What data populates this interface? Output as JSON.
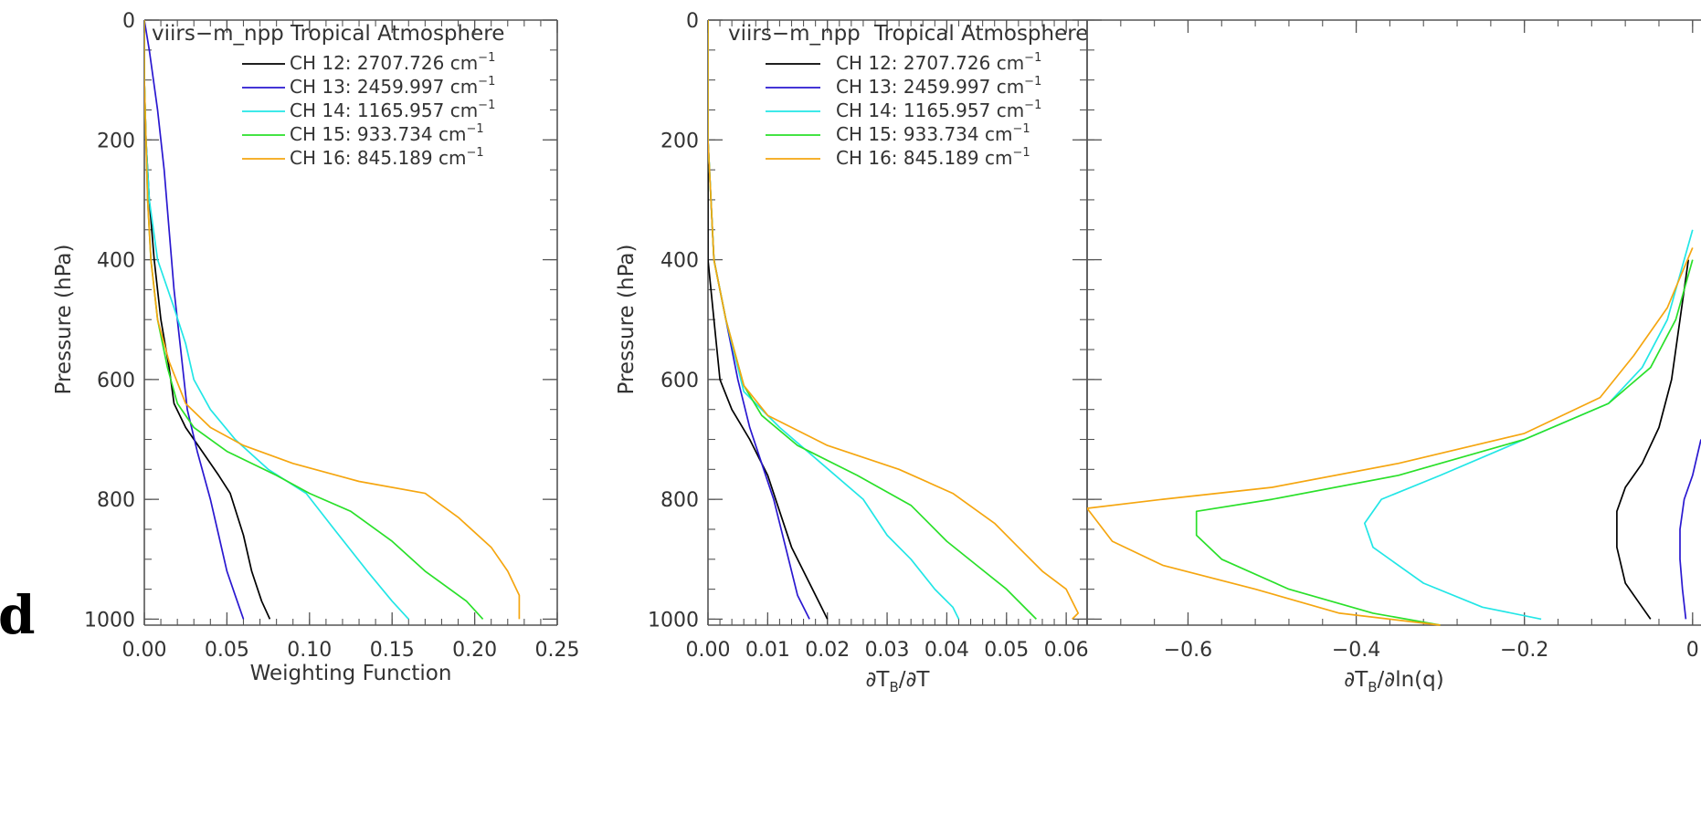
{
  "panel_label": "d",
  "chart_data": [
    {
      "type": "line",
      "title": "Tropical Atmosphere",
      "subtitle": "viirs−m_npp",
      "xlabel": "Weighting Function",
      "ylabel": "Pressure (hPa)",
      "xlim": [
        0,
        0.25
      ],
      "ylim": [
        1010,
        0
      ],
      "x_ticks": [
        0,
        0.05,
        0.1,
        0.15,
        0.2,
        0.25
      ],
      "x_tick_labels": [
        "0.00",
        "0.05",
        "0.10",
        "0.15",
        "0.20",
        "0.25"
      ],
      "y_ticks": [
        0,
        200,
        400,
        600,
        800,
        1000
      ],
      "y_tick_labels": [
        "0",
        "200",
        "400",
        "600",
        "800",
        "1000"
      ],
      "legend_position": "top",
      "series": [
        {
          "name": "CH 12: 2707.726 cm",
          "color": "#000000",
          "points": [
            [
              0.0,
              0
            ],
            [
              0.0,
              100
            ],
            [
              0.001,
              200
            ],
            [
              0.003,
              300
            ],
            [
              0.006,
              400
            ],
            [
              0.01,
              500
            ],
            [
              0.015,
              580
            ],
            [
              0.018,
              640
            ],
            [
              0.025,
              680
            ],
            [
              0.035,
              720
            ],
            [
              0.045,
              760
            ],
            [
              0.052,
              790
            ],
            [
              0.06,
              860
            ],
            [
              0.065,
              920
            ],
            [
              0.071,
              970
            ],
            [
              0.076,
              1000
            ]
          ]
        },
        {
          "name": "CH 13: 2459.997 cm",
          "color": "#2a18d0",
          "points": [
            [
              0.0,
              0
            ],
            [
              0.003,
              50
            ],
            [
              0.008,
              150
            ],
            [
              0.012,
              250
            ],
            [
              0.015,
              350
            ],
            [
              0.018,
              450
            ],
            [
              0.022,
              550
            ],
            [
              0.026,
              650
            ],
            [
              0.032,
              720
            ],
            [
              0.04,
              800
            ],
            [
              0.045,
              860
            ],
            [
              0.05,
              920
            ],
            [
              0.055,
              960
            ],
            [
              0.06,
              1000
            ]
          ]
        },
        {
          "name": "CH 14: 1165.957 cm",
          "color": "#22e6e6",
          "points": [
            [
              0.0,
              0
            ],
            [
              0.0,
              100
            ],
            [
              0.001,
              200
            ],
            [
              0.003,
              300
            ],
            [
              0.008,
              400
            ],
            [
              0.018,
              480
            ],
            [
              0.025,
              540
            ],
            [
              0.03,
              600
            ],
            [
              0.04,
              650
            ],
            [
              0.055,
              700
            ],
            [
              0.075,
              750
            ],
            [
              0.098,
              790
            ],
            [
              0.115,
              850
            ],
            [
              0.135,
              920
            ],
            [
              0.15,
              970
            ],
            [
              0.16,
              1000
            ]
          ]
        },
        {
          "name": "CH 15:  933.734 cm",
          "color": "#2ae02a",
          "points": [
            [
              0.0,
              0
            ],
            [
              0.0,
              100
            ],
            [
              0.001,
              200
            ],
            [
              0.002,
              300
            ],
            [
              0.004,
              400
            ],
            [
              0.008,
              500
            ],
            [
              0.014,
              580
            ],
            [
              0.02,
              640
            ],
            [
              0.03,
              680
            ],
            [
              0.05,
              720
            ],
            [
              0.08,
              760
            ],
            [
              0.1,
              790
            ],
            [
              0.125,
              820
            ],
            [
              0.15,
              870
            ],
            [
              0.17,
              920
            ],
            [
              0.195,
              970
            ],
            [
              0.205,
              1000
            ]
          ]
        },
        {
          "name": "CH 16:  845.189 cm",
          "color": "#f5a610",
          "points": [
            [
              0.0,
              0
            ],
            [
              0.0,
              100
            ],
            [
              0.001,
              200
            ],
            [
              0.002,
              300
            ],
            [
              0.004,
              400
            ],
            [
              0.008,
              500
            ],
            [
              0.015,
              570
            ],
            [
              0.025,
              640
            ],
            [
              0.04,
              680
            ],
            [
              0.06,
              710
            ],
            [
              0.09,
              740
            ],
            [
              0.13,
              770
            ],
            [
              0.17,
              790
            ],
            [
              0.19,
              830
            ],
            [
              0.21,
              880
            ],
            [
              0.22,
              920
            ],
            [
              0.227,
              960
            ],
            [
              0.227,
              1000
            ]
          ]
        }
      ]
    },
    {
      "type": "line",
      "title": "Tropical Atmosphere",
      "subtitle": "viirs−m_npp",
      "xlabel": "∂T",
      "ylabel": "Pressure (hPa)",
      "xlim": [
        0,
        0.0635
      ],
      "ylim": [
        1010,
        0
      ],
      "x_ticks": [
        0,
        0.01,
        0.02,
        0.03,
        0.04,
        0.05,
        0.06
      ],
      "x_tick_labels": [
        "0.00",
        "0.01",
        "0.02",
        "0.03",
        "0.04",
        "0.05",
        "0.06"
      ],
      "y_ticks": [
        0,
        200,
        400,
        600,
        800,
        1000
      ],
      "y_tick_labels": [
        "0",
        "200",
        "400",
        "600",
        "800",
        "1000"
      ],
      "legend_position": "top",
      "series": [
        {
          "name": "CH 12: 2707.726 cm",
          "color": "#000000",
          "points": [
            [
              0.0,
              0
            ],
            [
              0.0,
              200
            ],
            [
              0.0,
              400
            ],
            [
              0.001,
              500
            ],
            [
              0.002,
              600
            ],
            [
              0.004,
              650
            ],
            [
              0.007,
              700
            ],
            [
              0.01,
              760
            ],
            [
              0.012,
              820
            ],
            [
              0.014,
              880
            ],
            [
              0.017,
              940
            ],
            [
              0.019,
              980
            ],
            [
              0.02,
              1000
            ]
          ]
        },
        {
          "name": "CH 13: 2459.997 cm",
          "color": "#2a18d0",
          "points": [
            [
              0.0,
              0
            ],
            [
              0.0,
              200
            ],
            [
              0.001,
              400
            ],
            [
              0.003,
              500
            ],
            [
              0.005,
              600
            ],
            [
              0.007,
              680
            ],
            [
              0.009,
              740
            ],
            [
              0.011,
              800
            ],
            [
              0.013,
              880
            ],
            [
              0.015,
              960
            ],
            [
              0.017,
              1000
            ]
          ]
        },
        {
          "name": "CH 14: 1165.957 cm",
          "color": "#22e6e6",
          "points": [
            [
              0.0,
              0
            ],
            [
              0.0,
              200
            ],
            [
              0.001,
              400
            ],
            [
              0.003,
              500
            ],
            [
              0.006,
              620
            ],
            [
              0.012,
              680
            ],
            [
              0.019,
              740
            ],
            [
              0.026,
              800
            ],
            [
              0.03,
              860
            ],
            [
              0.034,
              900
            ],
            [
              0.038,
              950
            ],
            [
              0.041,
              980
            ],
            [
              0.042,
              1000
            ]
          ]
        },
        {
          "name": "CH 15:  933.734 cm",
          "color": "#2ae02a",
          "points": [
            [
              0.0,
              0
            ],
            [
              0.0,
              200
            ],
            [
              0.001,
              400
            ],
            [
              0.003,
              500
            ],
            [
              0.006,
              610
            ],
            [
              0.009,
              660
            ],
            [
              0.015,
              710
            ],
            [
              0.025,
              760
            ],
            [
              0.034,
              810
            ],
            [
              0.04,
              870
            ],
            [
              0.045,
              910
            ],
            [
              0.05,
              950
            ],
            [
              0.054,
              990
            ],
            [
              0.055,
              1000
            ]
          ]
        },
        {
          "name": "CH 16:  845.189 cm",
          "color": "#f5a610",
          "points": [
            [
              0.0,
              0
            ],
            [
              0.0,
              200
            ],
            [
              0.001,
              400
            ],
            [
              0.003,
              500
            ],
            [
              0.006,
              610
            ],
            [
              0.01,
              660
            ],
            [
              0.02,
              710
            ],
            [
              0.032,
              750
            ],
            [
              0.041,
              790
            ],
            [
              0.048,
              840
            ],
            [
              0.052,
              880
            ],
            [
              0.056,
              920
            ],
            [
              0.06,
              950
            ],
            [
              0.062,
              990
            ],
            [
              0.061,
              1000
            ]
          ]
        }
      ]
    },
    {
      "type": "line",
      "title": "",
      "xlabel": "∂T",
      "ylabel": "",
      "xlim": [
        -0.72,
        0.01
      ],
      "ylim": [
        1010,
        0
      ],
      "x_ticks": [
        -0.6,
        -0.4,
        -0.2,
        0
      ],
      "x_tick_labels": [
        "−0.6",
        "−0.4",
        "−0.2",
        "0"
      ],
      "y_ticks": [
        0,
        200,
        400,
        600,
        800,
        1000
      ],
      "series": [
        {
          "name": "CH 12: 2707.726 cm",
          "color": "#000000",
          "points": [
            [
              -0.005,
              400
            ],
            [
              -0.015,
              500
            ],
            [
              -0.025,
              600
            ],
            [
              -0.04,
              680
            ],
            [
              -0.06,
              740
            ],
            [
              -0.08,
              780
            ],
            [
              -0.09,
              820
            ],
            [
              -0.09,
              880
            ],
            [
              -0.08,
              940
            ],
            [
              -0.06,
              980
            ],
            [
              -0.05,
              1000
            ]
          ]
        },
        {
          "name": "CH 13: 2459.997 cm",
          "color": "#2a18d0",
          "points": [
            [
              0.01,
              700
            ],
            [
              0.0,
              760
            ],
            [
              -0.01,
              800
            ],
            [
              -0.015,
              850
            ],
            [
              -0.015,
              900
            ],
            [
              -0.012,
              950
            ],
            [
              -0.008,
              1000
            ]
          ]
        },
        {
          "name": "CH 14: 1165.957 cm",
          "color": "#22e6e6",
          "points": [
            [
              0.0,
              350
            ],
            [
              -0.01,
              400
            ],
            [
              -0.03,
              500
            ],
            [
              -0.06,
              580
            ],
            [
              -0.1,
              640
            ],
            [
              -0.2,
              700
            ],
            [
              -0.3,
              760
            ],
            [
              -0.37,
              800
            ],
            [
              -0.39,
              840
            ],
            [
              -0.38,
              880
            ],
            [
              -0.32,
              940
            ],
            [
              -0.25,
              980
            ],
            [
              -0.18,
              1000
            ]
          ]
        },
        {
          "name": "CH 15:  933.734 cm",
          "color": "#2ae02a",
          "points": [
            [
              0.0,
              400
            ],
            [
              -0.02,
              500
            ],
            [
              -0.05,
              580
            ],
            [
              -0.1,
              640
            ],
            [
              -0.2,
              700
            ],
            [
              -0.35,
              760
            ],
            [
              -0.5,
              800
            ],
            [
              -0.59,
              820
            ],
            [
              -0.59,
              860
            ],
            [
              -0.56,
              900
            ],
            [
              -0.48,
              950
            ],
            [
              -0.38,
              990
            ],
            [
              -0.3,
              1010
            ]
          ]
        },
        {
          "name": "CH 16:  845.189 cm",
          "color": "#f5a610",
          "points": [
            [
              0.0,
              380
            ],
            [
              -0.03,
              480
            ],
            [
              -0.07,
              560
            ],
            [
              -0.11,
              630
            ],
            [
              -0.2,
              690
            ],
            [
              -0.35,
              740
            ],
            [
              -0.5,
              780
            ],
            [
              -0.63,
              800
            ],
            [
              -0.72,
              815
            ],
            [
              -0.69,
              870
            ],
            [
              -0.63,
              910
            ],
            [
              -0.52,
              950
            ],
            [
              -0.42,
              990
            ],
            [
              -0.3,
              1010
            ]
          ]
        }
      ]
    }
  ]
}
